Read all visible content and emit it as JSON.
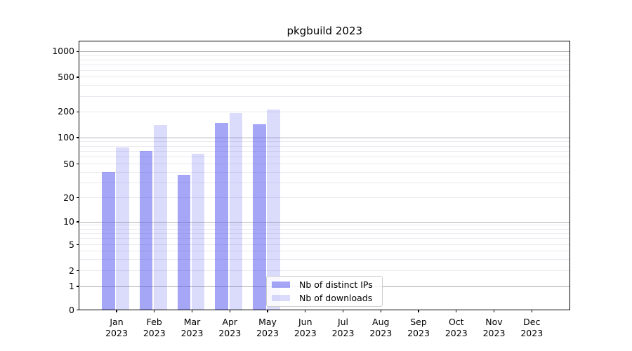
{
  "title": "pkgbuild 2023",
  "legend": {
    "items": [
      {
        "label": "Nb of distinct IPs",
        "color": "rgba(85,85,238,0.52)"
      },
      {
        "label": "Nb of downloads",
        "color": "rgba(85,85,238,0.21)"
      }
    ]
  },
  "chart_data": {
    "type": "bar",
    "title": "pkgbuild 2023",
    "categories": [
      "Jan 2023",
      "Feb 2023",
      "Mar 2023",
      "Apr 2023",
      "May 2023",
      "Jun 2023",
      "Jul 2023",
      "Aug 2023",
      "Sep 2023",
      "Oct 2023",
      "Nov 2023",
      "Dec 2023"
    ],
    "series": [
      {
        "name": "Nb of distinct IPs",
        "color": "rgba(85,85,238,0.52)",
        "values": [
          40,
          70,
          37,
          150,
          143,
          null,
          null,
          null,
          null,
          null,
          null,
          null
        ]
      },
      {
        "name": "Nb of downloads",
        "color": "rgba(85,85,238,0.21)",
        "values": [
          78,
          140,
          65,
          193,
          213,
          null,
          null,
          null,
          null,
          null,
          null,
          null
        ]
      }
    ],
    "xlabel": "",
    "ylabel": "",
    "yscale": "symlog",
    "ylim": [
      0,
      1300
    ],
    "yticks": [
      0,
      1,
      2,
      5,
      10,
      20,
      50,
      100,
      200,
      500,
      1000
    ],
    "ytick_fracs_from_top": [
      1.0,
      0.9125,
      0.8536,
      0.7569,
      0.6719,
      0.5822,
      0.4567,
      0.3582,
      0.2622,
      0.1333,
      0.0374
    ],
    "major_grid_values": [
      1,
      10,
      100,
      1000
    ],
    "minor_grid_values": [
      2,
      3,
      4,
      5,
      6,
      7,
      8,
      9,
      20,
      30,
      40,
      50,
      60,
      70,
      80,
      90,
      200,
      300,
      400,
      500,
      600,
      700,
      800,
      900
    ],
    "grid": true,
    "legend_position": "lower center inside axes",
    "colors": {
      "major_grid": "#b0b0b0",
      "minor_grid": "#e9e9ef",
      "spine": "#000000",
      "background": "#ffffff"
    }
  }
}
